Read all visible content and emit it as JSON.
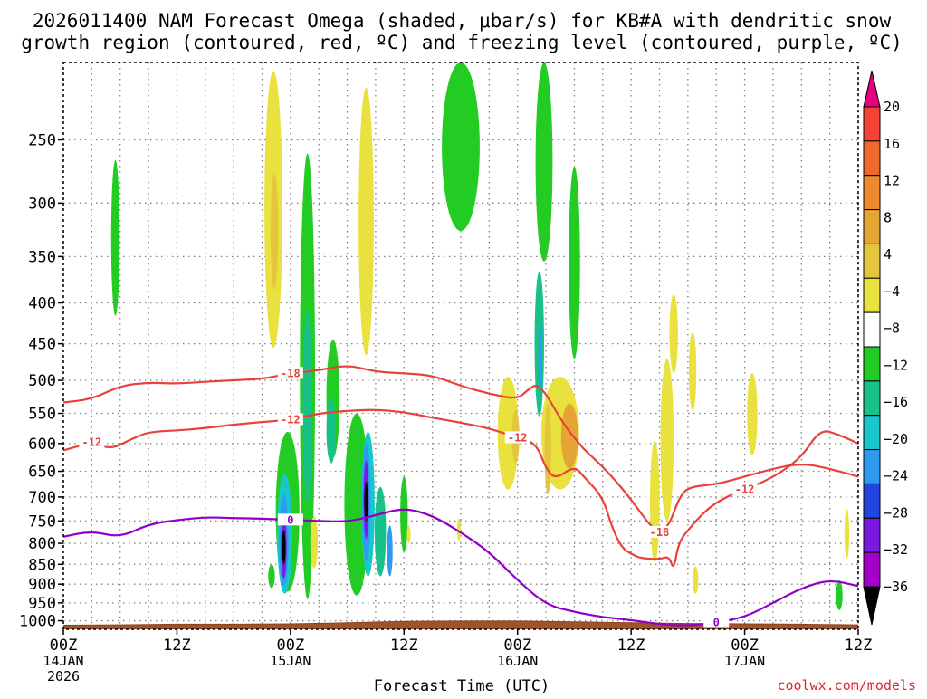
{
  "chart_data": {
    "type": "heatmap",
    "title_line1": "2026011400 NAM Forecast Omega (shaded, μbar/s) for KB#A with dendritic snow",
    "title_line2": "growth region (contoured, red, ºC) and freezing level (contoured, purple, ºC)",
    "xlabel": "Forecast Time (UTC)",
    "ylabel": "",
    "credit": "coolwx.com/models",
    "x_ticks": [
      {
        "label": "00Z",
        "date": "14JAN",
        "year": "2026",
        "hour": 0
      },
      {
        "label": "12Z",
        "date": "",
        "year": "",
        "hour": 12
      },
      {
        "label": "00Z",
        "date": "15JAN",
        "year": "",
        "hour": 24
      },
      {
        "label": "12Z",
        "date": "",
        "year": "",
        "hour": 36
      },
      {
        "label": "00Z",
        "date": "16JAN",
        "year": "",
        "hour": 48
      },
      {
        "label": "12Z",
        "date": "",
        "year": "",
        "hour": 60
      },
      {
        "label": "00Z",
        "date": "17JAN",
        "year": "",
        "hour": 72
      },
      {
        "label": "12Z",
        "date": "",
        "year": "",
        "hour": 84
      }
    ],
    "y_ticks": [
      "250",
      "300",
      "350",
      "400",
      "450",
      "500",
      "550",
      "600",
      "650",
      "700",
      "750",
      "800",
      "850",
      "900",
      "950",
      "1000"
    ],
    "xlim": [
      0,
      84
    ],
    "ylim_hpa": [
      200,
      1025
    ],
    "colorbar": {
      "labels": [
        "20",
        "16",
        "12",
        "8",
        "4",
        "−4",
        "−8",
        "−12",
        "−16",
        "−20",
        "−24",
        "−28",
        "−32",
        "−36"
      ],
      "bins": [
        {
          "color": "#e6007e",
          "label": ">20"
        },
        {
          "color": "#f44336",
          "label": "16–20"
        },
        {
          "color": "#ee6a2c",
          "label": "14–16"
        },
        {
          "color": "#ef8a2e",
          "label": "12–14"
        },
        {
          "color": "#e4a535",
          "label": "10–12"
        },
        {
          "color": "#e6c53e",
          "label": "8–10"
        },
        {
          "color": "#e8e13e",
          "label": "4–8"
        },
        {
          "color": "#ffffff",
          "label": "−4–4"
        },
        {
          "color": "#22cc22",
          "label": "−8–−4"
        },
        {
          "color": "#18c188",
          "label": "−12–−8"
        },
        {
          "color": "#19c6cc",
          "label": "−16–−12"
        },
        {
          "color": "#2e9af0",
          "label": "−20–−16"
        },
        {
          "color": "#2346e0",
          "label": "−24–−20"
        },
        {
          "color": "#7a1ae0",
          "label": "−28–−24"
        },
        {
          "color": "#a400c8",
          "label": "−32–−28"
        },
        {
          "color": "#a0a0a0",
          "label": "−36–−32"
        },
        {
          "color": "#000000",
          "label": "<−36"
        }
      ]
    },
    "contours": [
      {
        "name": "dgz-top",
        "value": "-18",
        "color": "#e8413c",
        "points": [
          [
            0,
            533
          ],
          [
            3,
            528
          ],
          [
            6,
            508
          ],
          [
            9,
            503
          ],
          [
            12,
            505
          ],
          [
            15,
            502
          ],
          [
            18,
            500
          ],
          [
            21,
            498
          ],
          [
            24,
            490
          ],
          [
            27,
            486
          ],
          [
            30,
            478
          ],
          [
            33,
            488
          ],
          [
            36,
            490
          ],
          [
            39,
            493
          ],
          [
            42,
            508
          ],
          [
            45,
            520
          ],
          [
            48,
            528
          ],
          [
            49,
            515
          ],
          [
            50,
            505
          ],
          [
            51,
            520
          ],
          [
            52,
            545
          ],
          [
            53,
            570
          ],
          [
            54,
            590
          ],
          [
            55,
            610
          ],
          [
            56,
            625
          ],
          [
            58,
            660
          ],
          [
            60,
            705
          ],
          [
            62,
            760
          ],
          [
            63,
            775
          ],
          [
            64,
            760
          ],
          [
            65,
            705
          ],
          [
            66,
            680
          ],
          [
            69,
            675
          ],
          [
            72,
            660
          ],
          [
            75,
            645
          ],
          [
            78,
            635
          ],
          [
            81,
            645
          ],
          [
            84,
            660
          ]
        ]
      },
      {
        "name": "dgz-bottom",
        "value": "-12",
        "color": "#e8413c",
        "points": [
          [
            0,
            612
          ],
          [
            3,
            598
          ],
          [
            5,
            610
          ],
          [
            7,
            594
          ],
          [
            9,
            580
          ],
          [
            12,
            578
          ],
          [
            15,
            574
          ],
          [
            18,
            568
          ],
          [
            21,
            564
          ],
          [
            24,
            560
          ],
          [
            27,
            550
          ],
          [
            30,
            546
          ],
          [
            33,
            544
          ],
          [
            36,
            548
          ],
          [
            39,
            557
          ],
          [
            42,
            565
          ],
          [
            45,
            574
          ],
          [
            48,
            590
          ],
          [
            50,
            600
          ],
          [
            51,
            645
          ],
          [
            52,
            665
          ],
          [
            54,
            640
          ],
          [
            55,
            660
          ],
          [
            57,
            700
          ],
          [
            58,
            765
          ],
          [
            59,
            810
          ],
          [
            60,
            825
          ],
          [
            61,
            835
          ],
          [
            63,
            838
          ],
          [
            64,
            830
          ],
          [
            64.5,
            865
          ],
          [
            65,
            800
          ],
          [
            66,
            770
          ],
          [
            68,
            725
          ],
          [
            70,
            700
          ],
          [
            72,
            685
          ],
          [
            75,
            662
          ],
          [
            78,
            625
          ],
          [
            80,
            575
          ],
          [
            82,
            585
          ],
          [
            84,
            600
          ]
        ]
      },
      {
        "name": "freezing-level",
        "value": "0",
        "color": "#9100c8",
        "points": [
          [
            0,
            785
          ],
          [
            3,
            772
          ],
          [
            6,
            787
          ],
          [
            9,
            757
          ],
          [
            12,
            748
          ],
          [
            15,
            742
          ],
          [
            18,
            744
          ],
          [
            21,
            745
          ],
          [
            24,
            748
          ],
          [
            27,
            750
          ],
          [
            30,
            752
          ],
          [
            33,
            738
          ],
          [
            36,
            722
          ],
          [
            39,
            738
          ],
          [
            42,
            775
          ],
          [
            45,
            820
          ],
          [
            48,
            890
          ],
          [
            51,
            955
          ],
          [
            54,
            975
          ],
          [
            57,
            990
          ],
          [
            60,
            998
          ],
          [
            63,
            1010
          ],
          [
            66,
            1015
          ],
          [
            69,
            1005
          ],
          [
            72,
            990
          ],
          [
            75,
            950
          ],
          [
            78,
            910
          ],
          [
            81,
            888
          ],
          [
            84,
            905
          ]
        ]
      }
    ],
    "omega_features": [
      {
        "hour": 5.5,
        "p": 340,
        "w": 0.9,
        "h": 150,
        "level": -6
      },
      {
        "hour": 22.2,
        "p": 330,
        "w": 1.9,
        "h": 250,
        "level": 6
      },
      {
        "hour": 22.3,
        "p": 330,
        "w": 0.8,
        "h": 110,
        "level": 10
      },
      {
        "hour": 32.0,
        "p": 340,
        "w": 1.6,
        "h": 250,
        "level": 6
      },
      {
        "hour": 42.0,
        "p": 245,
        "w": 4.0,
        "h": 160,
        "level": -6
      },
      {
        "hour": 50.8,
        "p": 230,
        "w": 1.8,
        "h": 250,
        "level": -6
      },
      {
        "hour": 51.5,
        "p": 100,
        "w": 1.0,
        "h": 80,
        "level": -6
      },
      {
        "hour": 54.0,
        "p": 370,
        "w": 1.2,
        "h": 200,
        "level": -6
      },
      {
        "hour": 47.0,
        "p": 590,
        "w": 2.2,
        "h": 190,
        "level": 6
      },
      {
        "hour": 52.5,
        "p": 590,
        "w": 4.0,
        "h": 190,
        "level": 6
      },
      {
        "hour": 53.5,
        "p": 590,
        "w": 1.8,
        "h": 110,
        "level": 12
      },
      {
        "hour": 47.8,
        "p": 590,
        "w": 0.8,
        "h": 90,
        "level": 10
      },
      {
        "hour": 62.5,
        "p": 720,
        "w": 1.0,
        "h": 250,
        "level": 6
      },
      {
        "hour": 63.8,
        "p": 610,
        "w": 1.4,
        "h": 280,
        "level": 6
      },
      {
        "hour": 64.5,
        "p": 440,
        "w": 0.9,
        "h": 100,
        "level": 6
      },
      {
        "hour": 66.5,
        "p": 490,
        "w": 0.8,
        "h": 110,
        "level": 6
      },
      {
        "hour": 66.8,
        "p": 890,
        "w": 0.6,
        "h": 70,
        "level": 6
      },
      {
        "hour": 72.8,
        "p": 555,
        "w": 1.1,
        "h": 130,
        "level": 6
      },
      {
        "hour": 82.8,
        "p": 780,
        "w": 0.5,
        "h": 110,
        "level": 6
      },
      {
        "hour": 82.0,
        "p": 930,
        "w": 0.7,
        "h": 80,
        "level": -6
      },
      {
        "hour": 41.8,
        "p": 770,
        "w": 0.3,
        "h": 50,
        "level": 6
      },
      {
        "hour": 23.7,
        "p": 750,
        "w": 2.5,
        "h": 340,
        "level": -8
      },
      {
        "hour": 23.4,
        "p": 790,
        "w": 1.6,
        "h": 270,
        "level": -14
      },
      {
        "hour": 23.3,
        "p": 800,
        "w": 1.0,
        "h": 210,
        "level": -20
      },
      {
        "hour": 23.3,
        "p": 810,
        "w": 0.6,
        "h": 150,
        "level": -28
      },
      {
        "hour": 23.3,
        "p": 810,
        "w": 0.35,
        "h": 80,
        "level": -40
      },
      {
        "hour": 25.8,
        "p": 600,
        "w": 1.6,
        "h": 680,
        "level": -6
      },
      {
        "hour": 25.8,
        "p": 560,
        "w": 1.0,
        "h": 300,
        "level": -10
      },
      {
        "hour": 26.5,
        "p": 800,
        "w": 0.8,
        "h": 120,
        "level": 6
      },
      {
        "hour": 22.0,
        "p": 880,
        "w": 0.7,
        "h": 60,
        "level": -6
      },
      {
        "hour": 31.0,
        "p": 740,
        "w": 2.6,
        "h": 380,
        "level": -8
      },
      {
        "hour": 32.2,
        "p": 730,
        "w": 1.4,
        "h": 300,
        "level": -14
      },
      {
        "hour": 32.0,
        "p": 720,
        "w": 0.9,
        "h": 240,
        "level": -20
      },
      {
        "hour": 32.0,
        "p": 710,
        "w": 0.55,
        "h": 160,
        "level": -28
      },
      {
        "hour": 32.0,
        "p": 710,
        "w": 0.3,
        "h": 80,
        "level": -40
      },
      {
        "hour": 33.5,
        "p": 780,
        "w": 1.2,
        "h": 200,
        "level": -10
      },
      {
        "hour": 34.5,
        "p": 820,
        "w": 0.6,
        "h": 120,
        "level": -20
      },
      {
        "hour": 36.0,
        "p": 740,
        "w": 0.8,
        "h": 160,
        "level": -6
      },
      {
        "hour": 28.5,
        "p": 535,
        "w": 1.4,
        "h": 180,
        "level": -6
      },
      {
        "hour": 28.3,
        "p": 580,
        "w": 1.0,
        "h": 110,
        "level": -10
      },
      {
        "hour": 50.3,
        "p": 460,
        "w": 1.0,
        "h": 190,
        "level": -10
      },
      {
        "hour": 50.4,
        "p": 470,
        "w": 0.4,
        "h": 90,
        "level": -18
      },
      {
        "hour": 51.2,
        "p": 615,
        "w": 0.7,
        "h": 160,
        "level": 10
      },
      {
        "hour": 36.5,
        "p": 780,
        "w": 0.4,
        "h": 40,
        "level": 6
      }
    ]
  }
}
